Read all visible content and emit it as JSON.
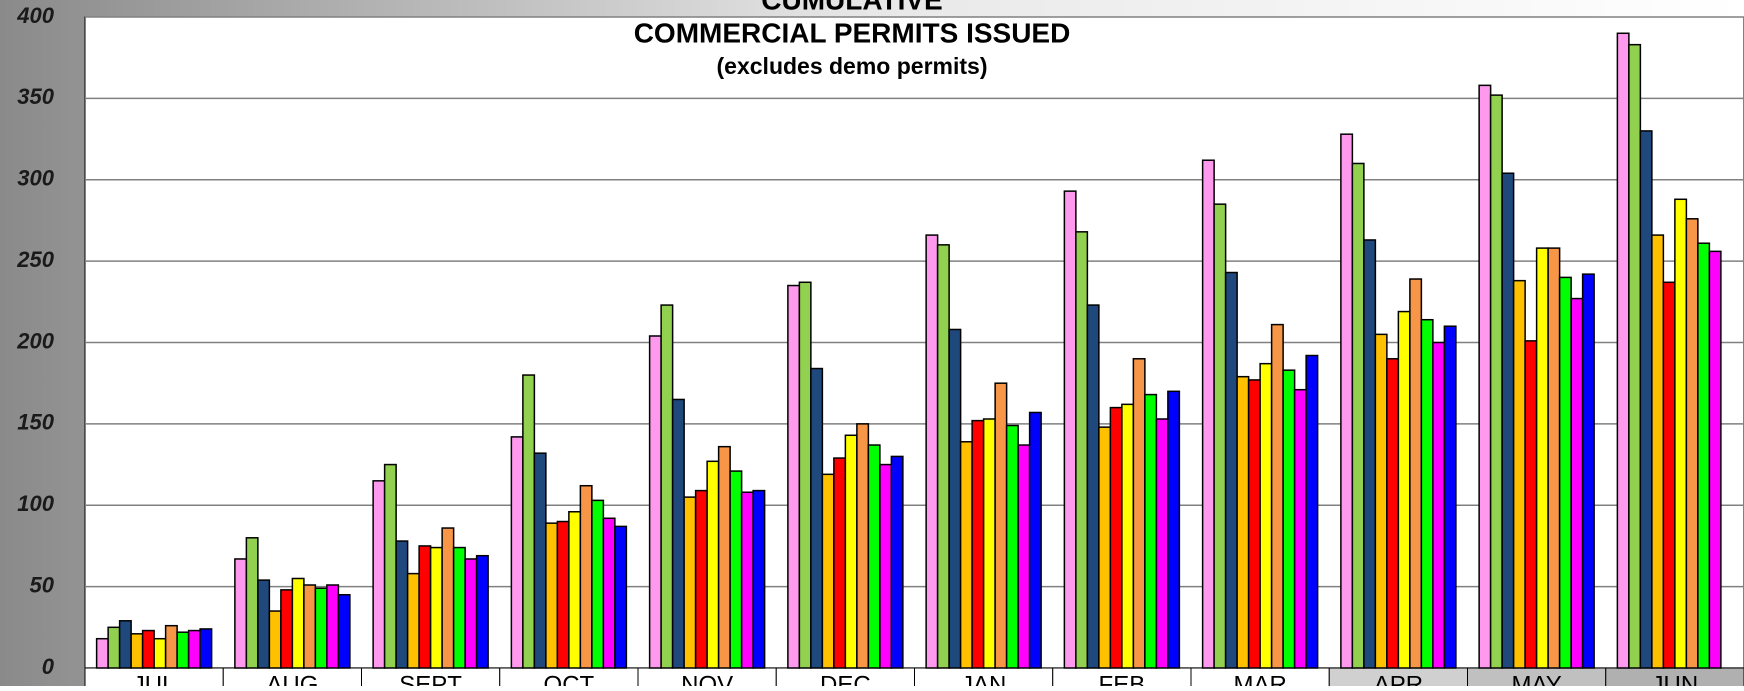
{
  "chart_data": {
    "type": "bar",
    "title": [
      "CUMULATIVE",
      "COMMERCIAL PERMITS ISSUED"
    ],
    "subtitle": "(excludes demo permits)",
    "categories": [
      "JUL",
      "AUG",
      "SEPT",
      "OCT",
      "NOV",
      "DEC",
      "JAN",
      "FEB",
      "MAR",
      "APR",
      "MAY",
      "JUN"
    ],
    "series": [
      {
        "color": "#ff99ee",
        "values": [
          18,
          67,
          115,
          142,
          204,
          235,
          266,
          293,
          312,
          328,
          358,
          390
        ]
      },
      {
        "color": "#92d050",
        "values": [
          25,
          80,
          125,
          180,
          223,
          237,
          260,
          268,
          285,
          310,
          352,
          383
        ]
      },
      {
        "color": "#1f497d",
        "values": [
          29,
          54,
          78,
          132,
          165,
          184,
          208,
          223,
          243,
          263,
          304,
          330
        ]
      },
      {
        "color": "#ffc000",
        "values": [
          21,
          35,
          58,
          89,
          105,
          119,
          139,
          148,
          179,
          205,
          238,
          266
        ]
      },
      {
        "color": "#ff0000",
        "values": [
          23,
          48,
          75,
          90,
          109,
          129,
          152,
          160,
          177,
          190,
          201,
          237
        ]
      },
      {
        "color": "#ffff00",
        "values": [
          18,
          55,
          74,
          96,
          127,
          143,
          153,
          162,
          187,
          219,
          258,
          288
        ]
      },
      {
        "color": "#f79646",
        "values": [
          26,
          51,
          86,
          112,
          136,
          150,
          175,
          190,
          211,
          239,
          258,
          276
        ]
      },
      {
        "color": "#00ff00",
        "values": [
          22,
          49,
          74,
          103,
          121,
          137,
          149,
          168,
          183,
          214,
          240,
          261
        ]
      },
      {
        "color": "#ff00ff",
        "values": [
          23,
          51,
          67,
          92,
          108,
          125,
          137,
          153,
          171,
          200,
          227,
          256
        ]
      },
      {
        "color": "#0000ff",
        "values": [
          24,
          45,
          69,
          87,
          109,
          130,
          157,
          170,
          192,
          210,
          242,
          null
        ]
      }
    ],
    "ylim": [
      0,
      400
    ],
    "yticks": [
      0,
      50,
      100,
      150,
      200,
      250,
      300,
      350,
      400
    ],
    "grid": true
  }
}
